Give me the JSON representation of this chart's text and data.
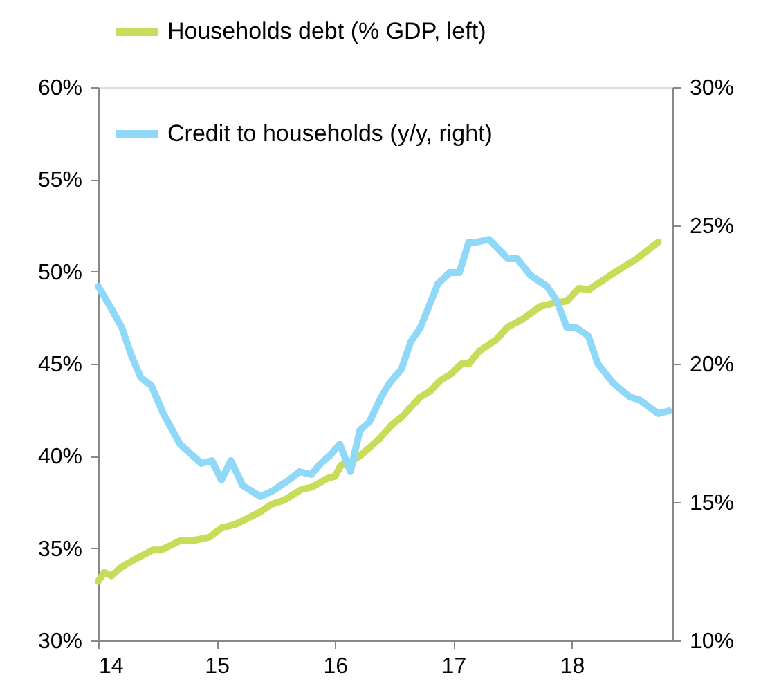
{
  "chart_data": {
    "type": "line",
    "xlim": [
      14,
      18.85
    ],
    "xticks": [
      14,
      15,
      16,
      17,
      18
    ],
    "ylim": [
      30,
      60
    ],
    "yticks": [
      {
        "value": 30,
        "label": "30%"
      },
      {
        "value": 35,
        "label": "35%"
      },
      {
        "value": 40,
        "label": "40%"
      },
      {
        "value": 45,
        "label": "45%"
      },
      {
        "value": 50,
        "label": "50%"
      },
      {
        "value": 55,
        "label": "55%"
      },
      {
        "value": 60,
        "label": "60%"
      }
    ],
    "y2lim": [
      10,
      30
    ],
    "y2ticks": [
      {
        "value": 10,
        "label": "10%"
      },
      {
        "value": 15,
        "label": "15%"
      },
      {
        "value": 20,
        "label": "20%"
      },
      {
        "value": 25,
        "label": "25%"
      },
      {
        "value": 30,
        "label": "30%"
      }
    ],
    "grid": false,
    "legend": "top left",
    "line_style": "solid",
    "marker": "none",
    "series": [
      {
        "name": "Households debt (% GDP, left)",
        "color": "#c8dc5a",
        "axis": "y",
        "x": [
          14.0,
          14.05,
          14.11,
          14.2,
          14.34,
          14.46,
          14.53,
          14.69,
          14.79,
          14.94,
          15.04,
          15.16,
          15.35,
          15.47,
          15.57,
          15.72,
          15.8,
          15.94,
          16.0,
          16.05,
          16.11,
          16.21,
          16.37,
          16.48,
          16.56,
          16.72,
          16.8,
          16.89,
          16.97,
          17.07,
          17.13,
          17.22,
          17.36,
          17.46,
          17.58,
          17.73,
          17.85,
          17.96,
          18.06,
          18.14,
          18.35,
          18.55,
          18.73
        ],
        "values": [
          33.2,
          33.7,
          33.5,
          34.0,
          34.5,
          34.9,
          34.9,
          35.4,
          35.4,
          35.6,
          36.1,
          36.3,
          36.9,
          37.4,
          37.6,
          38.2,
          38.3,
          38.8,
          38.9,
          39.5,
          39.6,
          40.0,
          40.9,
          41.7,
          42.1,
          43.2,
          43.5,
          44.1,
          44.4,
          45.0,
          45.0,
          45.7,
          46.3,
          47.0,
          47.4,
          48.1,
          48.3,
          48.4,
          49.1,
          49.0,
          49.9,
          50.7,
          51.6
        ]
      },
      {
        "name": "Credit to households (y/y, right)",
        "color": "#8fd8f8",
        "axis": "y2",
        "x": [
          14.0,
          14.11,
          14.2,
          14.28,
          14.36,
          14.45,
          14.55,
          14.69,
          14.87,
          14.96,
          15.04,
          15.12,
          15.22,
          15.37,
          15.47,
          15.61,
          15.7,
          15.8,
          15.88,
          15.96,
          16.04,
          16.13,
          16.21,
          16.29,
          16.39,
          16.46,
          16.56,
          16.64,
          16.72,
          16.87,
          16.97,
          17.05,
          17.13,
          17.2,
          17.3,
          17.46,
          17.54,
          17.65,
          17.79,
          17.87,
          17.96,
          18.04,
          18.14,
          18.22,
          18.35,
          18.49,
          18.57,
          18.73,
          18.82
        ],
        "values": [
          22.8,
          22.0,
          21.3,
          20.3,
          19.5,
          19.2,
          18.2,
          17.1,
          16.4,
          16.5,
          15.8,
          16.5,
          15.6,
          15.2,
          15.4,
          15.8,
          16.1,
          16.0,
          16.4,
          16.7,
          17.1,
          16.1,
          17.6,
          17.9,
          18.8,
          19.3,
          19.8,
          20.8,
          21.3,
          22.9,
          23.3,
          23.3,
          24.4,
          24.4,
          24.5,
          23.8,
          23.8,
          23.2,
          22.8,
          22.3,
          21.3,
          21.3,
          21.0,
          20.0,
          19.3,
          18.8,
          18.7,
          18.2,
          18.3
        ]
      }
    ]
  }
}
